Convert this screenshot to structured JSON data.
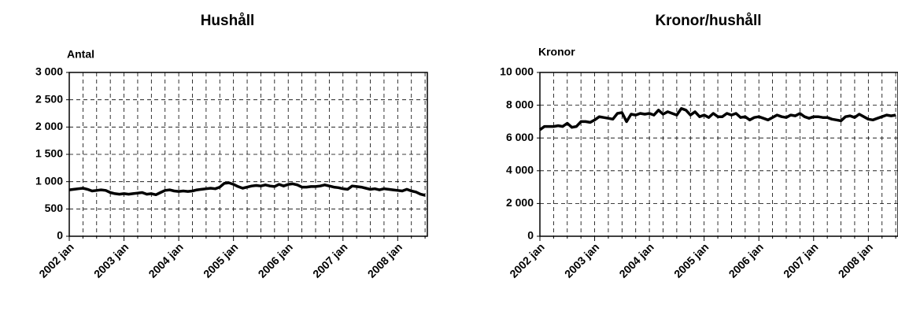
{
  "chart_data": [
    {
      "type": "line",
      "title": "Hushåll",
      "y_label": "Antal",
      "color": "#000000",
      "grid": true,
      "categories": [
        "2002 jan",
        null,
        null,
        null,
        null,
        null,
        null,
        null,
        null,
        null,
        null,
        null,
        "2003 jan",
        null,
        null,
        null,
        null,
        null,
        null,
        null,
        null,
        null,
        null,
        null,
        "2004 jan",
        null,
        null,
        null,
        null,
        null,
        null,
        null,
        null,
        null,
        null,
        null,
        "2005 jan",
        null,
        null,
        null,
        null,
        null,
        null,
        null,
        null,
        null,
        null,
        null,
        "2006 jan",
        null,
        null,
        null,
        null,
        null,
        null,
        null,
        null,
        null,
        null,
        null,
        "2007 jan",
        null,
        null,
        null,
        null,
        null,
        null,
        null,
        null,
        null,
        null,
        null,
        "2008 jan",
        null,
        null,
        null,
        null,
        null,
        null
      ],
      "values": [
        850,
        860,
        870,
        880,
        860,
        830,
        840,
        850,
        840,
        800,
        780,
        770,
        780,
        770,
        780,
        790,
        800,
        770,
        780,
        760,
        800,
        840,
        850,
        830,
        820,
        830,
        820,
        830,
        850,
        860,
        870,
        880,
        870,
        900,
        970,
        980,
        950,
        910,
        880,
        900,
        920,
        930,
        920,
        940,
        920,
        910,
        950,
        920,
        950,
        960,
        940,
        900,
        900,
        910,
        910,
        920,
        940,
        920,
        900,
        890,
        870,
        860,
        920,
        910,
        900,
        880,
        860,
        870,
        850,
        870,
        860,
        850,
        840,
        830,
        860,
        830,
        810,
        770,
        750
      ],
      "ylim": [
        0,
        3000
      ],
      "yticks": [
        0,
        500,
        {
          "value": 1000,
          "label": "1 000"
        },
        {
          "value": 1500,
          "label": "1 500"
        },
        {
          "value": 2000,
          "label": "2 000"
        },
        {
          "value": 2500,
          "label": "2 500"
        },
        {
          "value": 3000,
          "label": "3 000"
        }
      ]
    },
    {
      "type": "line",
      "title": "Kronor/hushåll",
      "y_label": "Kronor",
      "color": "#000000",
      "grid": true,
      "categories": [
        "2002 jan",
        null,
        null,
        null,
        null,
        null,
        null,
        null,
        null,
        null,
        null,
        null,
        "2003 jan",
        null,
        null,
        null,
        null,
        null,
        null,
        null,
        null,
        null,
        null,
        null,
        "2004 jan",
        null,
        null,
        null,
        null,
        null,
        null,
        null,
        null,
        null,
        null,
        null,
        "2005 jan",
        null,
        null,
        null,
        null,
        null,
        null,
        null,
        null,
        null,
        null,
        null,
        "2006 jan",
        null,
        null,
        null,
        null,
        null,
        null,
        null,
        null,
        null,
        null,
        null,
        "2007 jan",
        null,
        null,
        null,
        null,
        null,
        null,
        null,
        null,
        null,
        null,
        null,
        "2008 jan",
        null,
        null,
        null,
        null,
        null,
        null
      ],
      "values": [
        6500,
        6700,
        6700,
        6700,
        6750,
        6700,
        6900,
        6650,
        6700,
        7000,
        7000,
        6950,
        7100,
        7300,
        7250,
        7200,
        7150,
        7500,
        7550,
        7000,
        7450,
        7400,
        7500,
        7450,
        7500,
        7400,
        7700,
        7450,
        7600,
        7500,
        7400,
        7800,
        7700,
        7400,
        7600,
        7300,
        7400,
        7250,
        7500,
        7300,
        7300,
        7500,
        7400,
        7500,
        7250,
        7300,
        7100,
        7250,
        7300,
        7200,
        7100,
        7250,
        7400,
        7300,
        7250,
        7400,
        7350,
        7500,
        7300,
        7200,
        7300,
        7300,
        7250,
        7250,
        7150,
        7100,
        7050,
        7300,
        7350,
        7250,
        7450,
        7300,
        7150,
        7100,
        7200,
        7300,
        7400,
        7350,
        7400
      ],
      "ylim": [
        0,
        10000
      ],
      "yticks": [
        0,
        {
          "value": 2000,
          "label": "2 000"
        },
        {
          "value": 4000,
          "label": "4 000"
        },
        {
          "value": 6000,
          "label": "6 000"
        },
        {
          "value": 8000,
          "label": "8 000"
        },
        {
          "value": 10000,
          "label": "10 000"
        }
      ]
    }
  ]
}
